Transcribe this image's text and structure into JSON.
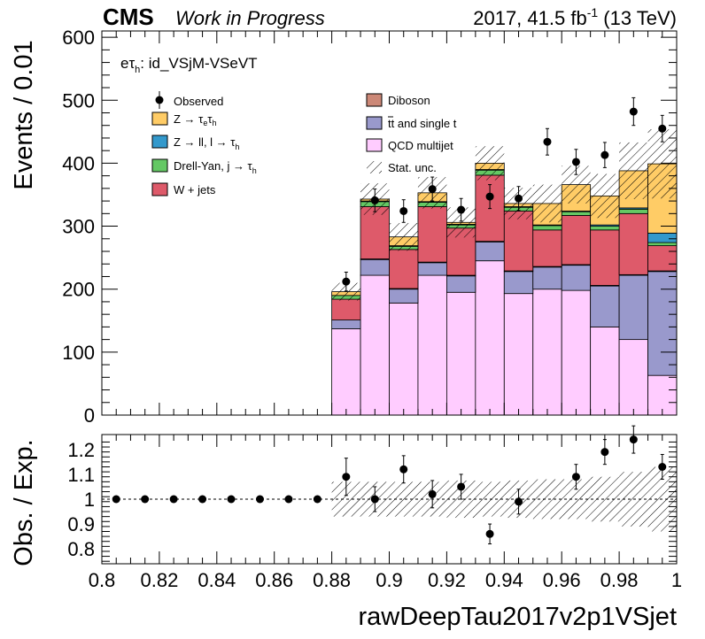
{
  "header": {
    "experiment": "CMS",
    "status": "Work in Progress",
    "lumi": "2017, 41.5 fb",
    "lumi_sup": "-1",
    "energy": " (13 TeV)"
  },
  "channel_label": {
    "main": "eτ",
    "sub": "h",
    "rest": ": id_VSjM-VSeVT"
  },
  "legend": {
    "observed": "Observed",
    "ztt_pre": "Z → τ",
    "ztt_sub1": "e",
    "ztt_mid": "τ",
    "ztt_sub2": "h",
    "zll_pre": "Z → ll, l → τ",
    "zll_sub": "h",
    "dy_pre": "Drell-Yan, j → τ",
    "dy_sub": "h",
    "wjets": "W + jets",
    "diboson": "Diboson",
    "ttbar_t": "t",
    "ttbar_rest": " and single t",
    "qcd": "QCD multijet",
    "stat": "Stat. unc."
  },
  "colors": {
    "qcd": "#ffccff",
    "ttbar": "#9999cc",
    "diboson": "#cc8877",
    "wjets": "#de5a6a",
    "dy": "#64c864",
    "zll": "#3399cc",
    "ztt": "#ffcc66"
  },
  "chart_data": [
    {
      "type": "bar",
      "subtype": "stacked-histogram",
      "ylabel": "Events / 0.01",
      "xlim": [
        0.8,
        1.0
      ],
      "ylim": [
        0,
        610
      ],
      "yticks": [
        0,
        100,
        200,
        300,
        400,
        500,
        600
      ],
      "bin_edges": [
        0.8,
        0.81,
        0.82,
        0.83,
        0.84,
        0.85,
        0.86,
        0.87,
        0.88,
        0.89,
        0.9,
        0.91,
        0.92,
        0.93,
        0.94,
        0.95,
        0.96,
        0.97,
        0.98,
        0.99,
        1.0
      ],
      "series": [
        {
          "name": "QCD multijet",
          "key": "qcd",
          "values": [
            0,
            0,
            0,
            0,
            0,
            0,
            0,
            0,
            137,
            222,
            178,
            222,
            195,
            245,
            193,
            200,
            198,
            140,
            120,
            63
          ]
        },
        {
          "name": "tt̄ and single t",
          "key": "ttbar",
          "values": [
            0,
            0,
            0,
            0,
            0,
            0,
            0,
            0,
            14,
            25,
            22,
            20,
            26,
            30,
            35,
            35,
            40,
            65,
            102,
            165
          ]
        },
        {
          "name": "Diboson",
          "key": "diboson",
          "values": [
            0,
            0,
            0,
            0,
            0,
            0,
            0,
            0,
            0,
            1,
            1,
            1,
            1,
            1,
            1,
            1,
            1,
            1,
            1,
            1
          ]
        },
        {
          "name": "W + jets",
          "key": "wjets",
          "values": [
            0,
            0,
            0,
            0,
            0,
            0,
            0,
            0,
            33,
            83,
            62,
            88,
            75,
            105,
            95,
            58,
            78,
            88,
            97,
            40
          ]
        },
        {
          "name": "Drell-Yan, j → τh",
          "key": "dy",
          "values": [
            0,
            0,
            0,
            0,
            0,
            0,
            0,
            0,
            6,
            8,
            5,
            7,
            5,
            8,
            6,
            7,
            6,
            6,
            7,
            5
          ]
        },
        {
          "name": "Z → ll, l → τh",
          "key": "zll",
          "values": [
            0,
            0,
            0,
            0,
            0,
            0,
            0,
            0,
            0,
            1,
            1,
            1,
            1,
            1,
            1,
            1,
            1,
            2,
            2,
            15
          ]
        },
        {
          "name": "Z → τeτh",
          "key": "ztt",
          "values": [
            0,
            0,
            0,
            0,
            0,
            0,
            0,
            0,
            6,
            3,
            14,
            14,
            3,
            10,
            5,
            34,
            42,
            46,
            59,
            110
          ]
        }
      ],
      "observed": {
        "name": "Observed",
        "x": [
          0.885,
          0.895,
          0.905,
          0.915,
          0.925,
          0.935,
          0.945,
          0.955,
          0.965,
          0.975,
          0.985,
          0.995
        ],
        "y": [
          212,
          341,
          324,
          359,
          326,
          347,
          344,
          434,
          402,
          413,
          482,
          455
        ],
        "err": [
          15,
          18,
          18,
          19,
          18,
          19,
          19,
          21,
          20,
          20,
          22,
          21
        ]
      },
      "stat_unc": [
        0,
        0,
        0,
        0,
        0,
        0,
        0,
        0,
        14,
        25,
        22,
        25,
        24,
        27,
        25,
        30,
        30,
        35,
        45,
        55
      ]
    },
    {
      "type": "scatter",
      "subtype": "ratio",
      "ylabel": "Obs. / Exp.",
      "xlabel": "rawDeepTau2017v2p1VSjet",
      "xlim": [
        0.8,
        1.0
      ],
      "ylim": [
        0.74,
        1.26
      ],
      "yticks": [
        0.8,
        0.9,
        1,
        1.1,
        1.2
      ],
      "ytick_labels": [
        "0.8",
        "0.9",
        "1",
        "1.1",
        "1.2"
      ],
      "xticks": [
        0.8,
        0.82,
        0.84,
        0.86,
        0.88,
        0.9,
        0.92,
        0.94,
        0.96,
        0.98,
        1.0
      ],
      "xtick_labels": [
        "0.8",
        "0.82",
        "0.84",
        "0.86",
        "0.88",
        "0.9",
        "0.92",
        "0.94",
        "0.96",
        "0.98",
        "1"
      ],
      "x": [
        0.805,
        0.815,
        0.825,
        0.835,
        0.845,
        0.855,
        0.865,
        0.875,
        0.885,
        0.895,
        0.905,
        0.915,
        0.925,
        0.935,
        0.945,
        0.955,
        0.965,
        0.975,
        0.985,
        0.995
      ],
      "y": [
        1,
        1,
        1,
        1,
        1,
        1,
        1,
        1,
        1.09,
        1.0,
        1.12,
        1.02,
        1.05,
        0.86,
        0.99,
        null,
        1.09,
        1.19,
        1.24,
        1.13
      ],
      "err": [
        0,
        0,
        0,
        0,
        0,
        0,
        0,
        0,
        0.075,
        0.05,
        0.055,
        0.055,
        0.05,
        0.04,
        0.05,
        0.05,
        0.05,
        0.05,
        0.055,
        0.05
      ],
      "unc_band": [
        0,
        0,
        0,
        0,
        0,
        0,
        0,
        0,
        0.07,
        0.07,
        0.07,
        0.07,
        0.075,
        0.07,
        0.075,
        0.08,
        0.08,
        0.09,
        0.11,
        0.13
      ]
    }
  ]
}
